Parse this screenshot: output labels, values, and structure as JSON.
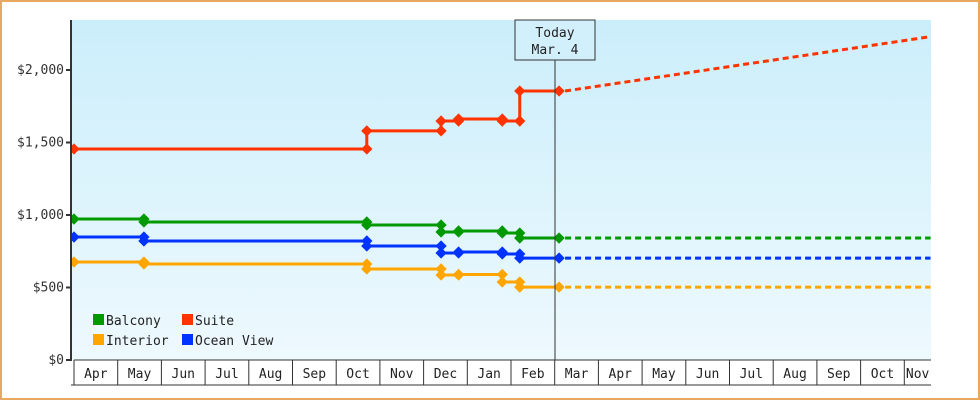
{
  "chart_data": {
    "type": "line",
    "subtype": "step",
    "title": "",
    "xlabel": "",
    "ylabel": "",
    "ylim": [
      0,
      2350
    ],
    "y_ticks": [
      {
        "value": 0,
        "label": "$0"
      },
      {
        "value": 500,
        "label": "$500"
      },
      {
        "value": 1000,
        "label": "$1,000"
      },
      {
        "value": 1500,
        "label": "$1,500"
      },
      {
        "value": 2000,
        "label": "$2,000"
      }
    ],
    "x_months": [
      "Apr",
      "May",
      "Jun",
      "Jul",
      "Aug",
      "Sep",
      "Oct",
      "Nov",
      "Dec",
      "Jan",
      "Feb",
      "Mar",
      "Apr",
      "May",
      "Jun",
      "Jul",
      "Aug",
      "Sep",
      "Oct",
      "Nov"
    ],
    "today_marker": {
      "line1": "Today",
      "line2": "Mar. 4",
      "x_month_index": 11.1
    },
    "grid": false,
    "legend_position": "lower-left",
    "series": [
      {
        "name": "Balcony",
        "color": "#009900",
        "points": [
          [
            0.0,
            972
          ],
          [
            1.6,
            972
          ],
          [
            1.6,
            952
          ],
          [
            6.7,
            952
          ],
          [
            6.7,
            931
          ],
          [
            8.4,
            931
          ],
          [
            8.4,
            883
          ],
          [
            8.8,
            883
          ],
          [
            8.8,
            890
          ],
          [
            9.8,
            890
          ],
          [
            9.8,
            876
          ],
          [
            10.2,
            876
          ],
          [
            10.2,
            841
          ],
          [
            11.1,
            841
          ]
        ],
        "forecast": [
          [
            11.1,
            841
          ],
          [
            19.6,
            841
          ]
        ]
      },
      {
        "name": "Suite",
        "color": "#ff3300",
        "points": [
          [
            0.0,
            1455
          ],
          [
            6.7,
            1455
          ],
          [
            6.7,
            1580
          ],
          [
            8.4,
            1580
          ],
          [
            8.4,
            1648
          ],
          [
            8.8,
            1648
          ],
          [
            8.8,
            1662
          ],
          [
            9.8,
            1662
          ],
          [
            9.8,
            1648
          ],
          [
            10.2,
            1648
          ],
          [
            10.2,
            1855
          ],
          [
            11.1,
            1855
          ]
        ],
        "forecast": [
          [
            11.1,
            1855
          ],
          [
            19.6,
            2230
          ]
        ]
      },
      {
        "name": "Interior",
        "color": "#ffa500",
        "points": [
          [
            0.0,
            676
          ],
          [
            1.6,
            676
          ],
          [
            1.6,
            662
          ],
          [
            6.7,
            662
          ],
          [
            6.7,
            628
          ],
          [
            8.4,
            628
          ],
          [
            8.4,
            586
          ],
          [
            8.8,
            586
          ],
          [
            8.8,
            590
          ],
          [
            9.8,
            590
          ],
          [
            9.8,
            538
          ],
          [
            10.2,
            538
          ],
          [
            10.2,
            503
          ],
          [
            11.1,
            503
          ]
        ],
        "forecast": [
          [
            11.1,
            503
          ],
          [
            19.6,
            503
          ]
        ]
      },
      {
        "name": "Ocean View",
        "color": "#0033ff",
        "points": [
          [
            0.0,
            848
          ],
          [
            1.6,
            848
          ],
          [
            1.6,
            821
          ],
          [
            6.7,
            821
          ],
          [
            6.7,
            786
          ],
          [
            8.4,
            786
          ],
          [
            8.4,
            738
          ],
          [
            8.8,
            738
          ],
          [
            8.8,
            745
          ],
          [
            9.8,
            745
          ],
          [
            9.8,
            731
          ],
          [
            10.2,
            731
          ],
          [
            10.2,
            703
          ],
          [
            11.1,
            703
          ]
        ],
        "forecast": [
          [
            11.1,
            703
          ],
          [
            19.6,
            703
          ]
        ]
      }
    ],
    "legend": [
      {
        "name": "Balcony",
        "color": "#009900"
      },
      {
        "name": "Suite",
        "color": "#ff3300"
      },
      {
        "name": "Interior",
        "color": "#ffa500"
      },
      {
        "name": "Ocean View",
        "color": "#0033ff"
      }
    ]
  },
  "colors": {
    "frame_border": "#e8a860",
    "plot_bg_top": "#cbeefb",
    "plot_bg_bottom": "#eef9fe",
    "axis": "#333333"
  }
}
